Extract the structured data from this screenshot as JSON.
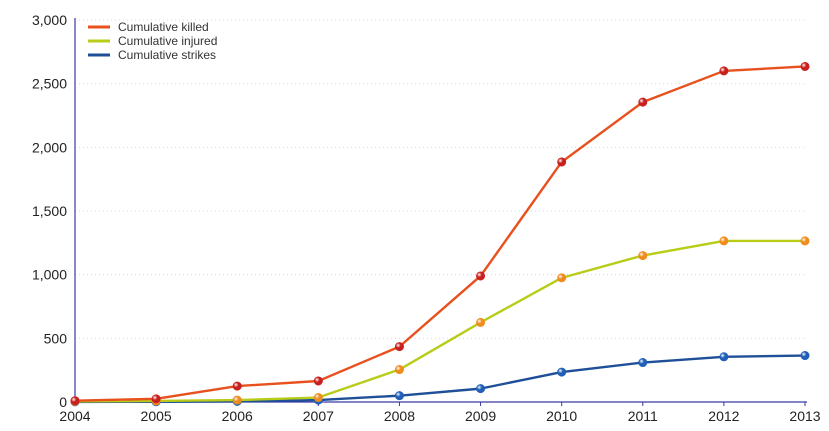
{
  "chart_data": {
    "type": "line",
    "title": "",
    "xlabel": "",
    "ylabel": "",
    "x": [
      2004,
      2005,
      2006,
      2007,
      2008,
      2009,
      2010,
      2011,
      2012,
      2013
    ],
    "x_tick_labels": [
      "2004",
      "2005",
      "2006",
      "2007",
      "2008",
      "2009",
      "2010",
      "2011",
      "2012",
      "2013"
    ],
    "y_tick_labels": [
      "0",
      "500",
      "1,000",
      "1,500",
      "2,000",
      "2,500",
      "3,000"
    ],
    "ylim": [
      0,
      3000
    ],
    "grid": true,
    "legend_position": "top-left",
    "series": [
      {
        "name": "Cumulative killed",
        "color": "#e8501e",
        "marker_color": "#c8201e",
        "values": [
          10,
          25,
          125,
          165,
          435,
          990,
          1885,
          2355,
          2600,
          2635
        ]
      },
      {
        "name": "Cumulative injured",
        "color": "#b8cc18",
        "marker_color": "#f08c1e",
        "values": [
          5,
          8,
          15,
          35,
          255,
          625,
          975,
          1150,
          1265,
          1265
        ]
      },
      {
        "name": "Cumulative strikes",
        "color": "#1f4f99",
        "marker_color": "#1f5fb8",
        "values": [
          1,
          2,
          5,
          15,
          50,
          105,
          235,
          310,
          355,
          365
        ]
      }
    ]
  }
}
